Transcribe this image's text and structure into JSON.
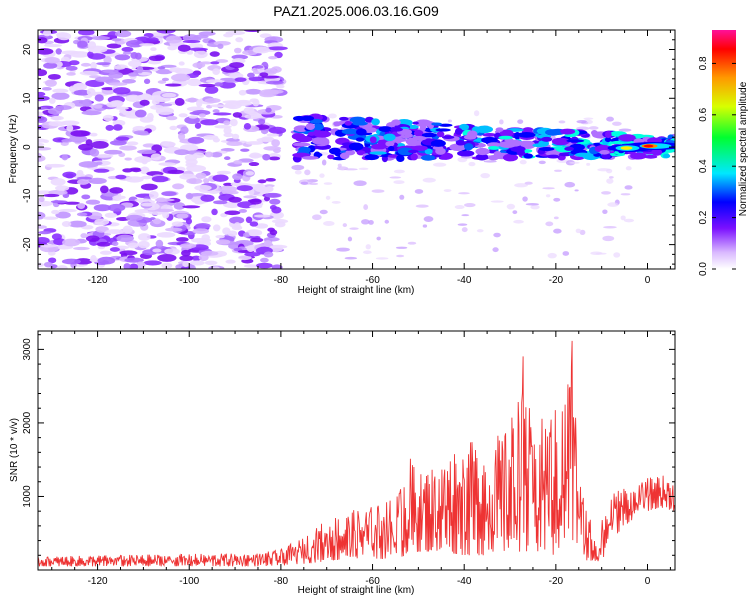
{
  "title": "PAZ1.2025.006.03.16.G09",
  "chart_data": [
    {
      "type": "heatmap",
      "xlabel": "Height of straight line (km)",
      "ylabel": "Frequency (Hz)",
      "xlim": [
        -133,
        6
      ],
      "ylim": [
        -25,
        24
      ],
      "xticks": [
        -120,
        -100,
        -80,
        -60,
        -40,
        -20,
        0
      ],
      "yticks": [
        -20,
        -10,
        0,
        10,
        20
      ],
      "colorbar": {
        "label": "Normalized spectral amplitude",
        "range": [
          0.0,
          0.93
        ],
        "ticks": [
          0.0,
          0.2,
          0.4,
          0.6,
          0.8
        ]
      },
      "features": [
        {
          "region": "scattered low-amplitude speckle",
          "x_range": [
            -133,
            -80
          ],
          "y_range": [
            -25,
            24
          ],
          "amplitude": 0.08
        },
        {
          "region": "main signal band",
          "x_range": [
            -77,
            6
          ],
          "frequency_hz_start": 2,
          "frequency_hz_end": 0,
          "peak_amplitude": 0.93,
          "peak_height_km": 0
        }
      ]
    },
    {
      "type": "line",
      "xlabel": "Height of straight line (km)",
      "ylabel": "SNR (10 * v/v)",
      "xlim": [
        -133,
        6
      ],
      "ylim": [
        0,
        3250
      ],
      "xticks": [
        -120,
        -100,
        -80,
        -60,
        -40,
        -20,
        0
      ],
      "yticks": [
        1000,
        2000,
        3000
      ],
      "series": [
        {
          "color": "#ee3333",
          "envelope": {
            "x": [
              -133,
              -120,
              -100,
              -85,
              -80,
              -75,
              -70,
              -65,
              -60,
              -55,
              -52,
              -50,
              -45,
              -40,
              -35,
              -30,
              -27,
              -26,
              -25,
              -22,
              -20,
              -18,
              -17,
              -16,
              -15,
              -13,
              -11,
              -10,
              -8,
              -5,
              -3,
              0,
              3,
              6
            ],
            "min": [
              50,
              50,
              50,
              50,
              60,
              80,
              120,
              150,
              150,
              150,
              200,
              250,
              250,
              200,
              200,
              250,
              250,
              200,
              250,
              200,
              200,
              300,
              350,
              400,
              300,
              100,
              30,
              100,
              400,
              600,
              700,
              800,
              850,
              800
            ],
            "max": [
              180,
              200,
              220,
              230,
              280,
              450,
              700,
              800,
              900,
              1000,
              1600,
              1300,
              1500,
              1800,
              1700,
              2000,
              3000,
              2400,
              1700,
              2300,
              2200,
              2400,
              3250,
              3200,
              1300,
              800,
              600,
              700,
              1050,
              1150,
              1100,
              1250,
              1300,
              1200
            ]
          }
        }
      ]
    }
  ]
}
